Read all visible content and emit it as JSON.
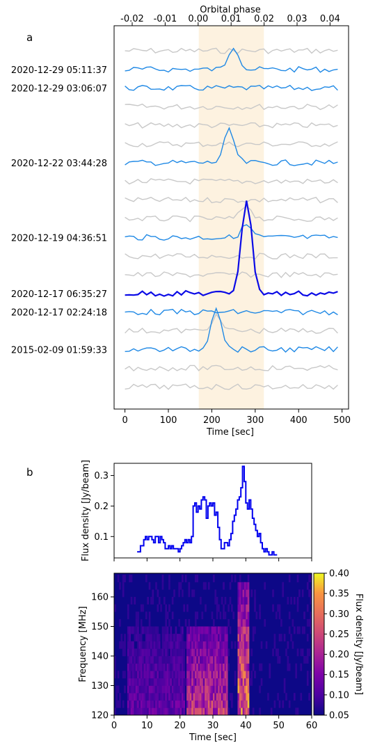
{
  "panel_labels": {
    "a": "a",
    "b": "b"
  },
  "colors": {
    "highlight_band": "#fdf2e0",
    "grey_trace": "#c8c8c8",
    "blue_trace": "#1e88e5",
    "bold_trace": "#0a0ae6",
    "lightcurve": "#0000ee"
  },
  "chart_data": [
    {
      "id": "panel_a",
      "type": "line",
      "title": "",
      "xlabel": "Time [sec]",
      "xlim": [
        -25,
        515
      ],
      "xticks": [
        "0",
        "100",
        "200",
        "300",
        "400",
        "500"
      ],
      "top_axis": {
        "label": "Orbital phase",
        "ticks": [
          "-0.02",
          "-0.01",
          "0.00",
          "0.01",
          "0.02",
          "0.03",
          "0.04"
        ]
      },
      "highlight_window": [
        170,
        320
      ],
      "trace_labels": [
        "2020-12-29 05:11:37",
        "2020-12-29 03:06:07",
        "2020-12-22 03:44:28",
        "2020-12-19 04:36:51",
        "2020-12-17 06:35:27",
        "2020-12-17 02:24:18",
        "2015-02-09 01:59:33"
      ],
      "series": [
        {
          "style": "grey",
          "peak_time": null,
          "peak": 0
        },
        {
          "style": "blue",
          "label_index": 0,
          "peak_time": 250,
          "peak": 34
        },
        {
          "style": "blue",
          "label_index": 1,
          "peak_time": null,
          "peak": 0
        },
        {
          "style": "grey",
          "peak_time": null,
          "peak": 0
        },
        {
          "style": "grey",
          "peak_time": null,
          "peak": 0
        },
        {
          "style": "grey",
          "peak_time": null,
          "peak": 0
        },
        {
          "style": "blue",
          "label_index": 2,
          "peak_time": 240,
          "peak": 46
        },
        {
          "style": "grey",
          "peak_time": null,
          "peak": 0
        },
        {
          "style": "grey",
          "peak_time": null,
          "peak": 0
        },
        {
          "style": "grey",
          "peak_time": 280,
          "peak": 20
        },
        {
          "style": "blue",
          "label_index": 3,
          "peak_time": 280,
          "peak": 18
        },
        {
          "style": "grey",
          "peak_time": null,
          "peak": 0
        },
        {
          "style": "grey",
          "peak_time": null,
          "peak": 0
        },
        {
          "style": "bold",
          "label_index": 4,
          "peak_time": 280,
          "peak": 135
        },
        {
          "style": "blue",
          "label_index": 5,
          "peak_time": null,
          "peak": 0
        },
        {
          "style": "grey",
          "peak_time": 210,
          "peak": 20
        },
        {
          "style": "blue",
          "label_index": 6,
          "peak_time": 210,
          "peak": 62
        },
        {
          "style": "grey",
          "peak_time": null,
          "peak": 0
        },
        {
          "style": "grey",
          "peak_time": null,
          "peak": 0
        }
      ]
    },
    {
      "id": "panel_b_lightcurve",
      "type": "line",
      "title": "",
      "xlabel": "",
      "ylabel": "Flux density [Jy/beam]",
      "xlim": [
        0,
        60
      ],
      "ylim": [
        0.03,
        0.34
      ],
      "yticks": [
        "0.1",
        "0.2",
        "0.3"
      ],
      "x": [
        7.0,
        7.5,
        8.0,
        8.5,
        9.0,
        9.5,
        10.0,
        10.5,
        11.0,
        11.5,
        12.0,
        12.5,
        13.0,
        13.5,
        14.0,
        14.5,
        15.0,
        15.5,
        16.0,
        16.5,
        17.0,
        17.5,
        18.0,
        18.5,
        19.0,
        19.5,
        20.0,
        20.5,
        21.0,
        21.5,
        22.0,
        22.5,
        23.0,
        23.5,
        24.0,
        24.5,
        25.0,
        25.5,
        26.0,
        26.5,
        27.0,
        27.5,
        28.0,
        28.5,
        29.0,
        29.5,
        30.0,
        30.5,
        31.0,
        31.5,
        32.0,
        32.5,
        33.0,
        33.5,
        34.0,
        34.5,
        35.0,
        35.5,
        36.0,
        36.5,
        37.0,
        37.5,
        38.0,
        38.5,
        39.0,
        39.5,
        40.0,
        40.5,
        41.0,
        41.5,
        42.0,
        42.5,
        43.0,
        43.5,
        44.0,
        44.5,
        45.0,
        45.5,
        46.0,
        46.5,
        47.0,
        47.5,
        48.0,
        48.5,
        49.0
      ],
      "values": [
        0.05,
        0.05,
        0.07,
        0.07,
        0.09,
        0.1,
        0.09,
        0.1,
        0.1,
        0.09,
        0.08,
        0.1,
        0.1,
        0.08,
        0.1,
        0.09,
        0.08,
        0.06,
        0.06,
        0.07,
        0.06,
        0.07,
        0.06,
        0.06,
        0.06,
        0.05,
        0.06,
        0.07,
        0.08,
        0.09,
        0.08,
        0.09,
        0.08,
        0.1,
        0.2,
        0.21,
        0.18,
        0.2,
        0.19,
        0.22,
        0.23,
        0.22,
        0.16,
        0.2,
        0.21,
        0.2,
        0.21,
        0.17,
        0.18,
        0.13,
        0.09,
        0.06,
        0.06,
        0.08,
        0.08,
        0.07,
        0.09,
        0.11,
        0.15,
        0.17,
        0.19,
        0.22,
        0.23,
        0.26,
        0.33,
        0.28,
        0.21,
        0.19,
        0.22,
        0.19,
        0.16,
        0.14,
        0.12,
        0.1,
        0.11,
        0.08,
        0.06,
        0.05,
        0.06,
        0.05,
        0.04,
        0.04,
        0.05,
        0.04,
        0.04
      ]
    },
    {
      "id": "panel_b_spectrogram",
      "type": "heatmap",
      "title": "",
      "xlabel": "Time [sec]",
      "ylabel": "Frequency [MHz]",
      "xlim": [
        0,
        60
      ],
      "ylim": [
        120,
        168
      ],
      "xticks": [
        "0",
        "10",
        "20",
        "30",
        "40",
        "50",
        "60"
      ],
      "yticks": [
        "120",
        "130",
        "140",
        "150",
        "160"
      ],
      "colorbar": {
        "label": "Flux density [Jy/beam]",
        "range": [
          0.05,
          0.4
        ],
        "ticks": [
          "0.05",
          "0.10",
          "0.15",
          "0.20",
          "0.25",
          "0.30",
          "0.35",
          "0.40"
        ],
        "colormap": "plasma"
      },
      "time_bin_sec": 0.5,
      "freq_bins_mhz": [
        120,
        122.5,
        125,
        127.5,
        130,
        132.5,
        135,
        137.5,
        140,
        142.5,
        145,
        147.5,
        150,
        152.5,
        155,
        157.5,
        160,
        162.5,
        165
      ],
      "bursts": [
        {
          "t_start": 22,
          "t_end": 34,
          "f_low": 120,
          "f_high": 150,
          "peak": 0.3
        },
        {
          "t_start": 37.5,
          "t_end": 40.5,
          "f_low": 120,
          "f_high": 165,
          "peak": 0.4
        },
        {
          "t_start": 4,
          "t_end": 21,
          "f_low": 120,
          "f_high": 150,
          "peak": 0.16
        }
      ]
    }
  ]
}
